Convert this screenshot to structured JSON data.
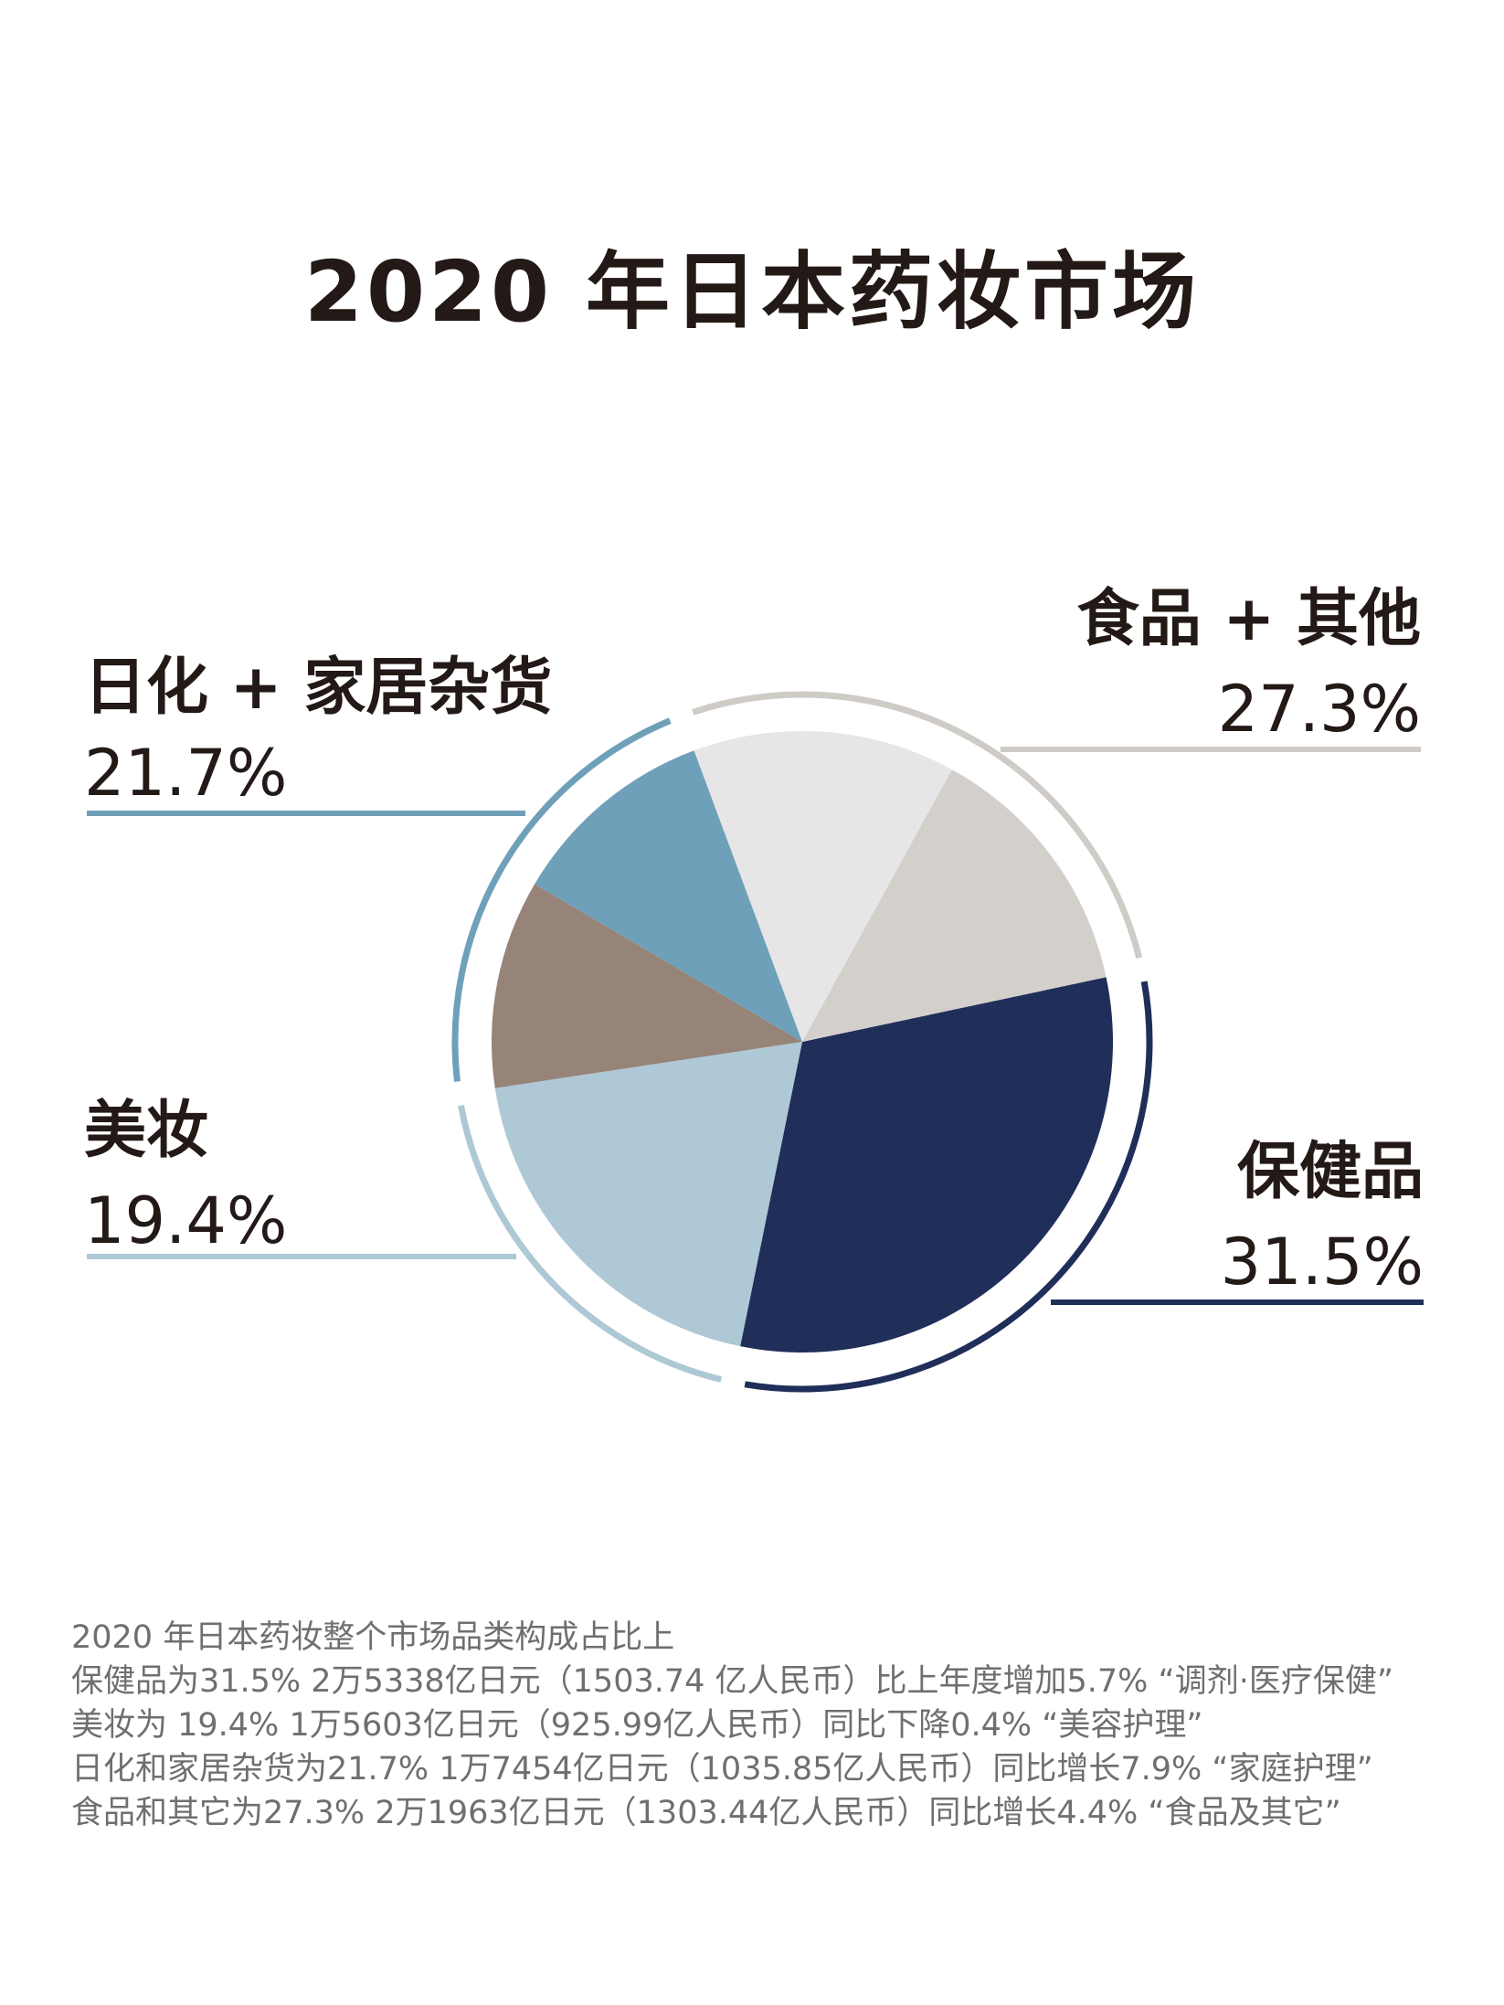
{
  "chart_data": {
    "type": "pie",
    "title": "2020 年日本药妆市场",
    "categories": [
      "保健品",
      "食品 + 其他",
      "日化 + 家居杂货",
      "美妆"
    ],
    "values": [
      31.5,
      27.3,
      21.7,
      19.4
    ],
    "value_labels": [
      "31.5%",
      "27.3%",
      "21.7%",
      "19.4%"
    ],
    "colors": {
      "保健品": "#202e5a",
      "食品 + 其他": "#cfcbc6",
      "日化 + 家居杂货": "#6fa0b9",
      "美妆": "#aec8d5"
    },
    "legend": "labels-around-pie"
  },
  "notes": [
    "2020 年日本药妆整个市场品类构成占比上",
    "保健品为31.5% 2万5338亿日元（1503.74 亿人民币）比上年度增加5.7% “调剂·医疗保健”",
    "美妆为 19.4% 1万5603亿日元（925.99亿人民币）同比下降0.4% “美容护理”",
    "日化和家居杂货为21.7% 1万7454亿日元（1035.85亿人民币）同比增长7.9% “家庭护理”",
    "食品和其它为27.3% 2万1963亿日元（1303.44亿人民币）同比增长4.4% “食品及其它”"
  ]
}
